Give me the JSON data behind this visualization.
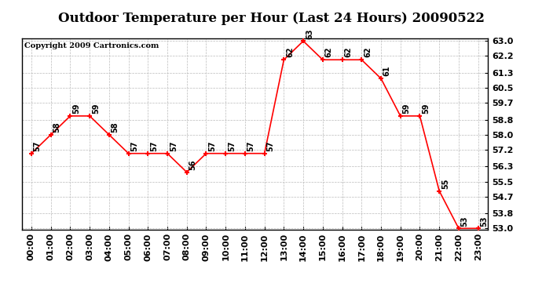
{
  "title": "Outdoor Temperature per Hour (Last 24 Hours) 20090522",
  "copyright": "Copyright 2009 Cartronics.com",
  "hours": [
    "00:00",
    "01:00",
    "02:00",
    "03:00",
    "04:00",
    "05:00",
    "06:00",
    "07:00",
    "08:00",
    "09:00",
    "10:00",
    "11:00",
    "12:00",
    "13:00",
    "14:00",
    "15:00",
    "16:00",
    "17:00",
    "18:00",
    "19:00",
    "20:00",
    "21:00",
    "22:00",
    "23:00"
  ],
  "temps": [
    57,
    58,
    59,
    59,
    58,
    57,
    57,
    57,
    56,
    57,
    57,
    57,
    57,
    62,
    63,
    62,
    62,
    62,
    61,
    59,
    59,
    55,
    53,
    53
  ],
  "line_color": "#ff0000",
  "marker_color": "#ff0000",
  "bg_color": "#ffffff",
  "grid_color": "#bbbbbb",
  "title_fontsize": 12,
  "copyright_fontsize": 7,
  "label_fontsize": 7,
  "tick_fontsize": 8,
  "ylim_min": 53.0,
  "ylim_max": 63.0,
  "yticks": [
    53.0,
    53.8,
    54.7,
    55.5,
    56.3,
    57.2,
    58.0,
    58.8,
    59.7,
    60.5,
    61.3,
    62.2,
    63.0
  ]
}
